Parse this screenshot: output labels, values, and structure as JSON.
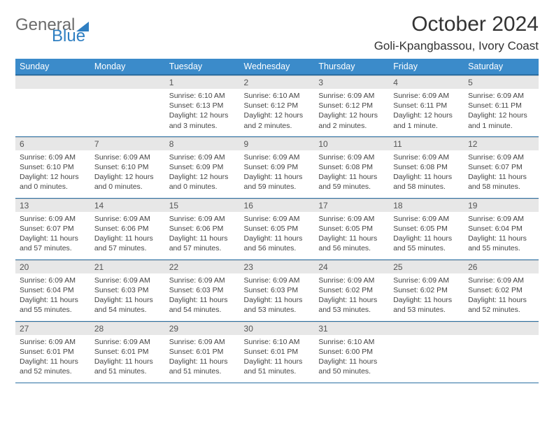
{
  "logo": {
    "part1": "General",
    "part2": "Blue"
  },
  "header": {
    "month_title": "October 2024",
    "location": "Goli-Kpangbassou, Ivory Coast"
  },
  "colors": {
    "header_bg": "#3b8bca",
    "header_border": "#2b6fa3",
    "daynum_bg": "#e7e7e7",
    "logo_gray": "#6b6b6b",
    "logo_blue": "#2f7fc2"
  },
  "calendar": {
    "columns": [
      "Sunday",
      "Monday",
      "Tuesday",
      "Wednesday",
      "Thursday",
      "Friday",
      "Saturday"
    ],
    "weeks": [
      [
        null,
        null,
        {
          "n": "1",
          "sr": "6:10 AM",
          "ss": "6:13 PM",
          "dl": "12 hours and 3 minutes."
        },
        {
          "n": "2",
          "sr": "6:10 AM",
          "ss": "6:12 PM",
          "dl": "12 hours and 2 minutes."
        },
        {
          "n": "3",
          "sr": "6:09 AM",
          "ss": "6:12 PM",
          "dl": "12 hours and 2 minutes."
        },
        {
          "n": "4",
          "sr": "6:09 AM",
          "ss": "6:11 PM",
          "dl": "12 hours and 1 minute."
        },
        {
          "n": "5",
          "sr": "6:09 AM",
          "ss": "6:11 PM",
          "dl": "12 hours and 1 minute."
        }
      ],
      [
        {
          "n": "6",
          "sr": "6:09 AM",
          "ss": "6:10 PM",
          "dl": "12 hours and 0 minutes."
        },
        {
          "n": "7",
          "sr": "6:09 AM",
          "ss": "6:10 PM",
          "dl": "12 hours and 0 minutes."
        },
        {
          "n": "8",
          "sr": "6:09 AM",
          "ss": "6:09 PM",
          "dl": "12 hours and 0 minutes."
        },
        {
          "n": "9",
          "sr": "6:09 AM",
          "ss": "6:09 PM",
          "dl": "11 hours and 59 minutes."
        },
        {
          "n": "10",
          "sr": "6:09 AM",
          "ss": "6:08 PM",
          "dl": "11 hours and 59 minutes."
        },
        {
          "n": "11",
          "sr": "6:09 AM",
          "ss": "6:08 PM",
          "dl": "11 hours and 58 minutes."
        },
        {
          "n": "12",
          "sr": "6:09 AM",
          "ss": "6:07 PM",
          "dl": "11 hours and 58 minutes."
        }
      ],
      [
        {
          "n": "13",
          "sr": "6:09 AM",
          "ss": "6:07 PM",
          "dl": "11 hours and 57 minutes."
        },
        {
          "n": "14",
          "sr": "6:09 AM",
          "ss": "6:06 PM",
          "dl": "11 hours and 57 minutes."
        },
        {
          "n": "15",
          "sr": "6:09 AM",
          "ss": "6:06 PM",
          "dl": "11 hours and 57 minutes."
        },
        {
          "n": "16",
          "sr": "6:09 AM",
          "ss": "6:05 PM",
          "dl": "11 hours and 56 minutes."
        },
        {
          "n": "17",
          "sr": "6:09 AM",
          "ss": "6:05 PM",
          "dl": "11 hours and 56 minutes."
        },
        {
          "n": "18",
          "sr": "6:09 AM",
          "ss": "6:05 PM",
          "dl": "11 hours and 55 minutes."
        },
        {
          "n": "19",
          "sr": "6:09 AM",
          "ss": "6:04 PM",
          "dl": "11 hours and 55 minutes."
        }
      ],
      [
        {
          "n": "20",
          "sr": "6:09 AM",
          "ss": "6:04 PM",
          "dl": "11 hours and 55 minutes."
        },
        {
          "n": "21",
          "sr": "6:09 AM",
          "ss": "6:03 PM",
          "dl": "11 hours and 54 minutes."
        },
        {
          "n": "22",
          "sr": "6:09 AM",
          "ss": "6:03 PM",
          "dl": "11 hours and 54 minutes."
        },
        {
          "n": "23",
          "sr": "6:09 AM",
          "ss": "6:03 PM",
          "dl": "11 hours and 53 minutes."
        },
        {
          "n": "24",
          "sr": "6:09 AM",
          "ss": "6:02 PM",
          "dl": "11 hours and 53 minutes."
        },
        {
          "n": "25",
          "sr": "6:09 AM",
          "ss": "6:02 PM",
          "dl": "11 hours and 53 minutes."
        },
        {
          "n": "26",
          "sr": "6:09 AM",
          "ss": "6:02 PM",
          "dl": "11 hours and 52 minutes."
        }
      ],
      [
        {
          "n": "27",
          "sr": "6:09 AM",
          "ss": "6:01 PM",
          "dl": "11 hours and 52 minutes."
        },
        {
          "n": "28",
          "sr": "6:09 AM",
          "ss": "6:01 PM",
          "dl": "11 hours and 51 minutes."
        },
        {
          "n": "29",
          "sr": "6:09 AM",
          "ss": "6:01 PM",
          "dl": "11 hours and 51 minutes."
        },
        {
          "n": "30",
          "sr": "6:10 AM",
          "ss": "6:01 PM",
          "dl": "11 hours and 51 minutes."
        },
        {
          "n": "31",
          "sr": "6:10 AM",
          "ss": "6:00 PM",
          "dl": "11 hours and 50 minutes."
        },
        null,
        null
      ]
    ],
    "labels": {
      "sunrise": "Sunrise:",
      "sunset": "Sunset:",
      "daylight": "Daylight:"
    }
  }
}
